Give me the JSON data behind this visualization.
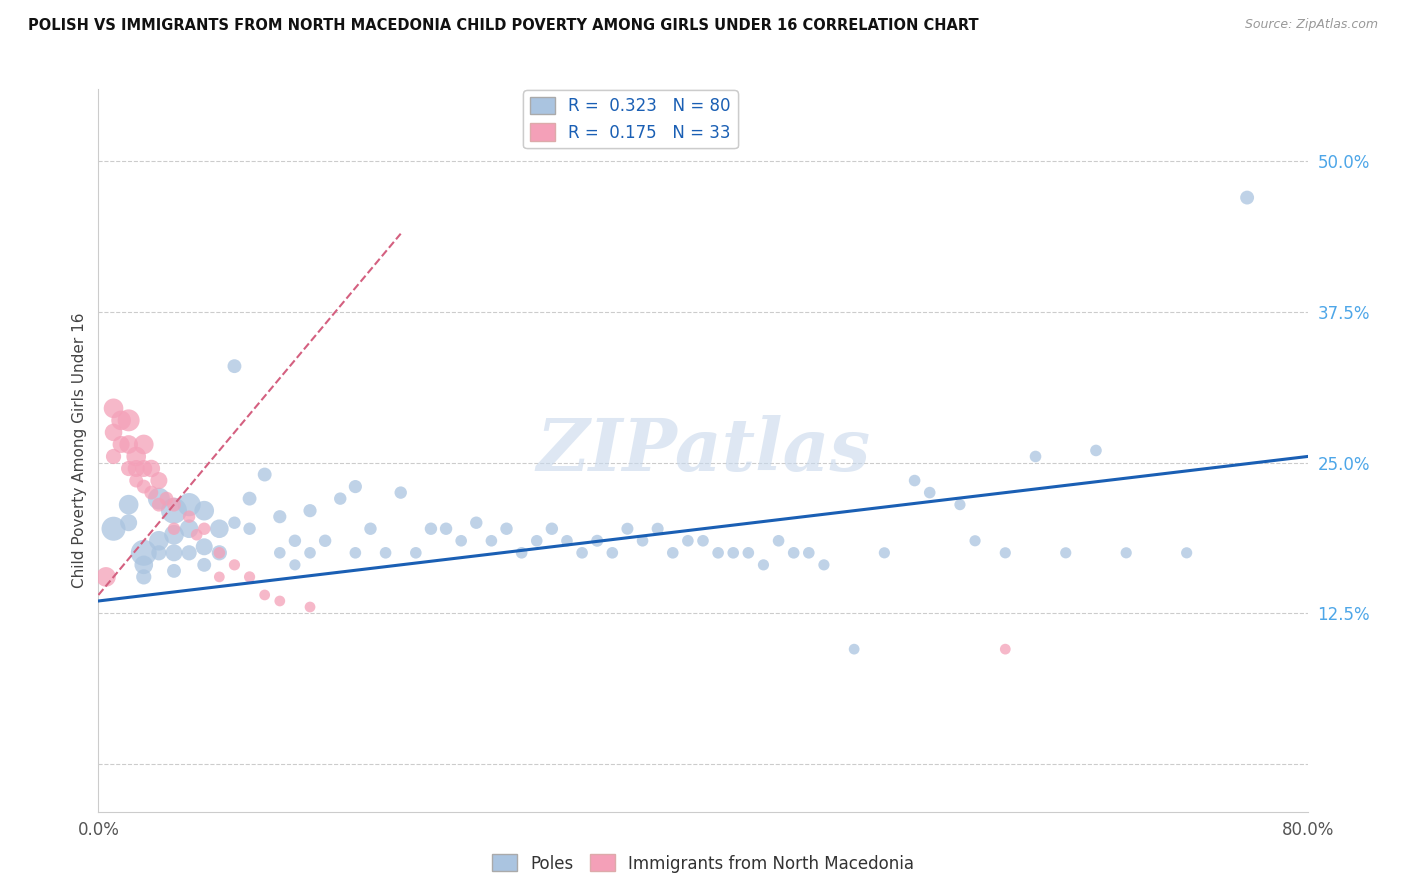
{
  "title": "POLISH VS IMMIGRANTS FROM NORTH MACEDONIA CHILD POVERTY AMONG GIRLS UNDER 16 CORRELATION CHART",
  "source": "Source: ZipAtlas.com",
  "ylabel_label": "Child Poverty Among Girls Under 16",
  "right_yticks": [
    0.0,
    0.125,
    0.25,
    0.375,
    0.5
  ],
  "right_yticklabels": [
    "",
    "12.5%",
    "25.0%",
    "37.5%",
    "50.0%"
  ],
  "xlim": [
    0.0,
    0.8
  ],
  "ylim": [
    -0.04,
    0.56
  ],
  "legend1_R": "0.323",
  "legend1_N": "80",
  "legend2_R": "0.175",
  "legend2_N": "33",
  "legend_bottom": [
    "Poles",
    "Immigrants from North Macedonia"
  ],
  "blue_color": "#aac4e0",
  "pink_color": "#f4a0b8",
  "blue_line_color": "#1a5fb4",
  "pink_line_color": "#d46080",
  "watermark": "ZIPatlas",
  "poles_x": [
    0.01,
    0.02,
    0.02,
    0.03,
    0.03,
    0.03,
    0.04,
    0.04,
    0.04,
    0.05,
    0.05,
    0.05,
    0.05,
    0.06,
    0.06,
    0.06,
    0.07,
    0.07,
    0.07,
    0.08,
    0.08,
    0.09,
    0.09,
    0.1,
    0.1,
    0.11,
    0.12,
    0.12,
    0.13,
    0.13,
    0.14,
    0.14,
    0.15,
    0.16,
    0.17,
    0.17,
    0.18,
    0.19,
    0.2,
    0.21,
    0.22,
    0.23,
    0.24,
    0.25,
    0.26,
    0.27,
    0.28,
    0.29,
    0.3,
    0.31,
    0.32,
    0.33,
    0.34,
    0.35,
    0.36,
    0.37,
    0.38,
    0.39,
    0.4,
    0.41,
    0.42,
    0.43,
    0.44,
    0.45,
    0.46,
    0.47,
    0.48,
    0.5,
    0.52,
    0.54,
    0.55,
    0.57,
    0.58,
    0.6,
    0.62,
    0.64,
    0.66,
    0.68,
    0.72,
    0.76
  ],
  "poles_y": [
    0.195,
    0.215,
    0.2,
    0.175,
    0.165,
    0.155,
    0.22,
    0.185,
    0.175,
    0.21,
    0.19,
    0.175,
    0.16,
    0.215,
    0.195,
    0.175,
    0.21,
    0.18,
    0.165,
    0.195,
    0.175,
    0.33,
    0.2,
    0.22,
    0.195,
    0.24,
    0.205,
    0.175,
    0.185,
    0.165,
    0.21,
    0.175,
    0.185,
    0.22,
    0.23,
    0.175,
    0.195,
    0.175,
    0.225,
    0.175,
    0.195,
    0.195,
    0.185,
    0.2,
    0.185,
    0.195,
    0.175,
    0.185,
    0.195,
    0.185,
    0.175,
    0.185,
    0.175,
    0.195,
    0.185,
    0.195,
    0.175,
    0.185,
    0.185,
    0.175,
    0.175,
    0.175,
    0.165,
    0.185,
    0.175,
    0.175,
    0.165,
    0.095,
    0.175,
    0.235,
    0.225,
    0.215,
    0.185,
    0.175,
    0.255,
    0.175,
    0.26,
    0.175,
    0.175,
    0.47
  ],
  "poles_size": [
    300,
    200,
    150,
    350,
    180,
    120,
    250,
    200,
    120,
    350,
    200,
    150,
    100,
    280,
    180,
    120,
    200,
    150,
    100,
    180,
    120,
    100,
    80,
    100,
    80,
    100,
    90,
    70,
    80,
    65,
    90,
    70,
    80,
    80,
    90,
    70,
    80,
    70,
    80,
    70,
    80,
    80,
    70,
    80,
    70,
    80,
    70,
    70,
    80,
    70,
    70,
    75,
    70,
    75,
    70,
    75,
    70,
    70,
    70,
    70,
    70,
    70,
    65,
    70,
    70,
    70,
    65,
    60,
    65,
    70,
    70,
    65,
    65,
    65,
    70,
    65,
    70,
    65,
    65,
    100
  ],
  "north_mac_x": [
    0.005,
    0.01,
    0.01,
    0.01,
    0.015,
    0.015,
    0.02,
    0.02,
    0.02,
    0.025,
    0.025,
    0.025,
    0.03,
    0.03,
    0.03,
    0.035,
    0.035,
    0.04,
    0.04,
    0.045,
    0.05,
    0.05,
    0.06,
    0.065,
    0.07,
    0.08,
    0.08,
    0.09,
    0.1,
    0.11,
    0.12,
    0.14,
    0.6
  ],
  "north_mac_y": [
    0.155,
    0.295,
    0.275,
    0.255,
    0.285,
    0.265,
    0.285,
    0.265,
    0.245,
    0.255,
    0.245,
    0.235,
    0.265,
    0.245,
    0.23,
    0.245,
    0.225,
    0.235,
    0.215,
    0.22,
    0.215,
    0.195,
    0.205,
    0.19,
    0.195,
    0.175,
    0.155,
    0.165,
    0.155,
    0.14,
    0.135,
    0.13,
    0.095
  ],
  "north_mac_size": [
    200,
    200,
    160,
    120,
    200,
    150,
    250,
    180,
    120,
    200,
    150,
    100,
    200,
    150,
    100,
    160,
    100,
    150,
    100,
    100,
    100,
    80,
    80,
    70,
    80,
    70,
    60,
    65,
    65,
    60,
    60,
    60,
    60
  ],
  "blue_line_x0": 0.0,
  "blue_line_y0": 0.135,
  "blue_line_x1": 0.8,
  "blue_line_y1": 0.255,
  "pink_line_x0": 0.0,
  "pink_line_y0": 0.14,
  "pink_line_x1": 0.2,
  "pink_line_y1": 0.44
}
